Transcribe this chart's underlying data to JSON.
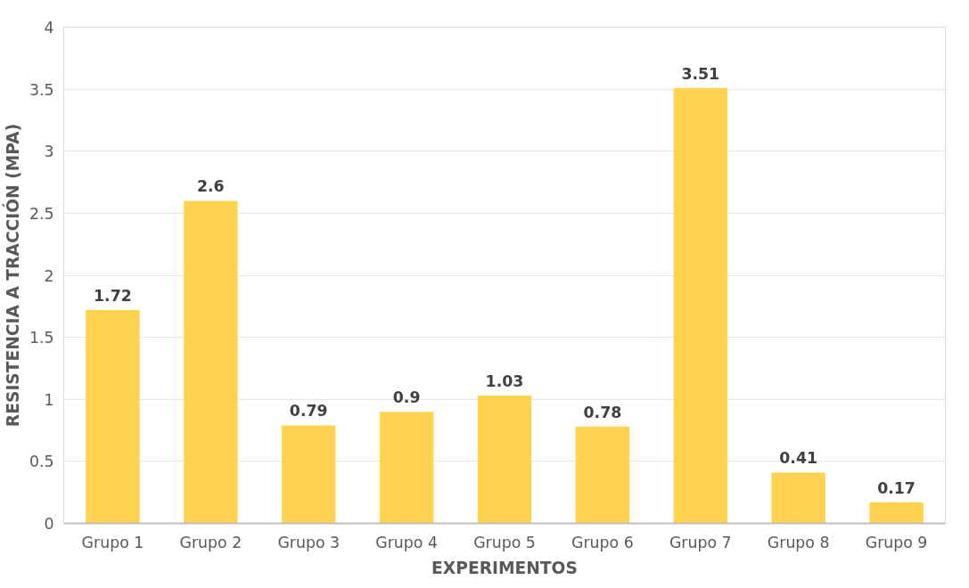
{
  "chart_data": {
    "type": "bar",
    "xlabel": "EXPERIMENTOS",
    "ylabel": "RESISTENCIA A TRACCIÓN (MPA)",
    "categories": [
      "Grupo 1",
      "Grupo 2",
      "Grupo 3",
      "Grupo 4",
      "Grupo 5",
      "Grupo 6",
      "Grupo 7",
      "Grupo 8",
      "Grupo 9"
    ],
    "values": [
      1.72,
      2.6,
      0.79,
      0.9,
      1.03,
      0.78,
      3.51,
      0.41,
      0.17
    ],
    "color": "#ffd34f",
    "ylim": [
      0,
      4
    ],
    "yticks": [
      0,
      0.5,
      1,
      1.5,
      2,
      2.5,
      3,
      3.5,
      4
    ],
    "grid": "y",
    "data_labels": true
  }
}
